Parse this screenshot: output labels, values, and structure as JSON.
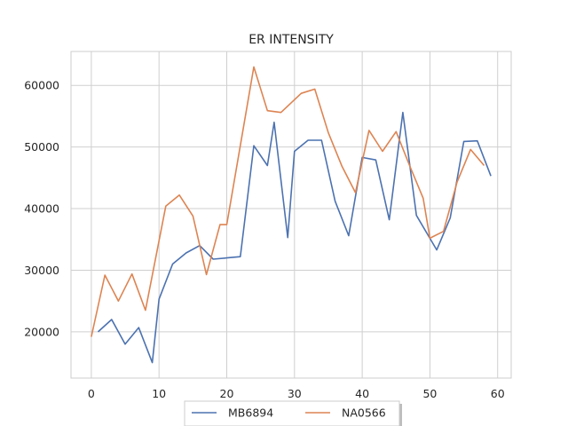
{
  "chart_data": {
    "type": "line",
    "title": "ER INTENSITY",
    "xlabel": "",
    "ylabel": "",
    "xlim": [
      -3,
      62
    ],
    "ylim": [
      12500,
      65500
    ],
    "xticks": [
      0,
      10,
      20,
      30,
      40,
      50,
      60
    ],
    "yticks": [
      20000,
      30000,
      40000,
      50000,
      60000
    ],
    "grid": true,
    "legend_position": "bottom-center",
    "series": [
      {
        "name": "MB6894",
        "color": "#4c72b0",
        "x": [
          1,
          3,
          5,
          7,
          9,
          10,
          12,
          14,
          16,
          18,
          20,
          22,
          24,
          26,
          27,
          29,
          30,
          32,
          34,
          36,
          38,
          40,
          42,
          44,
          46,
          48,
          51,
          53,
          55,
          57,
          59
        ],
        "y": [
          20000,
          22000,
          18000,
          20700,
          15000,
          25300,
          31000,
          32800,
          34000,
          31800,
          32000,
          32200,
          50200,
          47000,
          54000,
          35300,
          49300,
          51100,
          51100,
          41200,
          35600,
          48300,
          47900,
          38200,
          55600,
          38900,
          33300,
          38500,
          50900,
          51000,
          45300
        ]
      },
      {
        "name": "NA0566",
        "color": "#dd8452",
        "x": [
          0,
          2,
          4,
          6,
          8,
          11,
          13,
          15,
          17,
          19,
          20,
          24,
          26,
          28,
          31,
          33,
          35,
          37,
          39,
          41,
          43,
          45,
          47,
          49,
          50,
          52,
          54,
          56,
          58
        ],
        "y": [
          19200,
          29200,
          25000,
          29400,
          23500,
          40400,
          42200,
          38800,
          29300,
          37400,
          37400,
          63000,
          55900,
          55600,
          58700,
          59400,
          52300,
          46900,
          42600,
          52700,
          49300,
          52500,
          47000,
          41700,
          35200,
          36300,
          44300,
          49600,
          47000
        ]
      }
    ]
  }
}
